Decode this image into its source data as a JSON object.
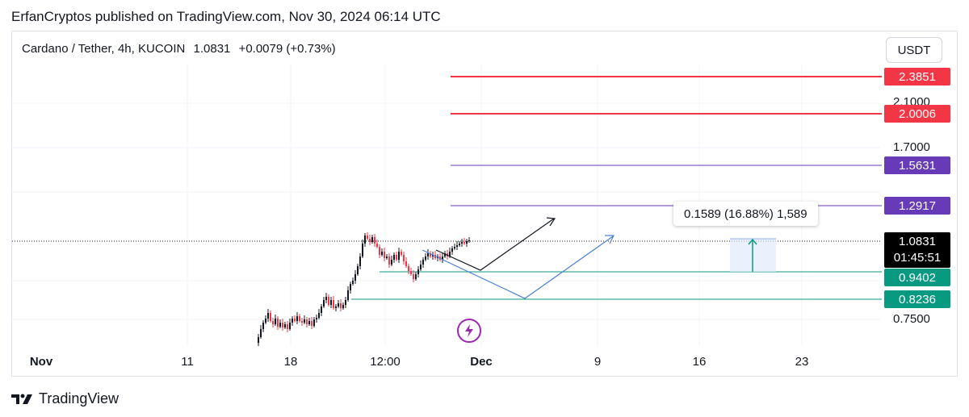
{
  "header": {
    "published": "ErfanCryptos published on TradingView.com, Nov 30, 2024 06:14 UTC"
  },
  "symbol": {
    "name": "Cardano / Tether, 4h, KUCOIN",
    "price": "1.0831",
    "change": "+0.0079 (+0.73%)"
  },
  "currency_button": "USDT",
  "price_axis": {
    "labels": [
      "2.1000",
      "1.7000",
      "0.7500"
    ]
  },
  "levels": [
    {
      "label": "2.3851",
      "color": "#f23645",
      "kind": "resistance"
    },
    {
      "label": "2.0006",
      "color": "#f23645",
      "kind": "resistance"
    },
    {
      "label": "1.5631",
      "color": "#673ab7",
      "kind": "resistance"
    },
    {
      "label": "1.2917",
      "color": "#673ab7",
      "kind": "resistance"
    },
    {
      "label": "0.9402",
      "color": "#089981",
      "kind": "support"
    },
    {
      "label": "0.8236",
      "color": "#089981",
      "kind": "support"
    }
  ],
  "current": {
    "price": "1.0831",
    "countdown": "01:45:51"
  },
  "measure": {
    "label": "0.1589 (16.88%) 1,589"
  },
  "time_axis": {
    "ticks": [
      {
        "label": "Nov",
        "bold": true
      },
      {
        "label": "11",
        "bold": false
      },
      {
        "label": "18",
        "bold": false
      },
      {
        "label": "12:00",
        "bold": false
      },
      {
        "label": "Dec",
        "bold": true
      },
      {
        "label": "9",
        "bold": false
      },
      {
        "label": "16",
        "bold": false
      },
      {
        "label": "23",
        "bold": false
      }
    ]
  },
  "brand": "TradingView",
  "chart_data": {
    "type": "candlestick",
    "symbol": "Cardano / Tether",
    "interval": "4h",
    "exchange": "KUCOIN",
    "last_price": 1.0831,
    "change": 0.0079,
    "change_pct": 0.73,
    "horizontal_levels": [
      2.3851,
      2.0006,
      1.5631,
      1.2917,
      0.9402,
      0.8236
    ],
    "y_axis_ticks": [
      2.1,
      1.7,
      0.75
    ],
    "x_axis_ticks": [
      "Nov",
      "11",
      "18",
      "12:00",
      "Dec",
      "9",
      "16",
      "23"
    ],
    "measure": {
      "delta": 0.1589,
      "pct": 16.88,
      "ticks": 1589
    },
    "projections": [
      {
        "color": "#131722",
        "description": "short dip then rally"
      },
      {
        "color": "#4a7fd4",
        "description": "deeper dip to 0.8236 then rally"
      }
    ],
    "grid": true
  }
}
